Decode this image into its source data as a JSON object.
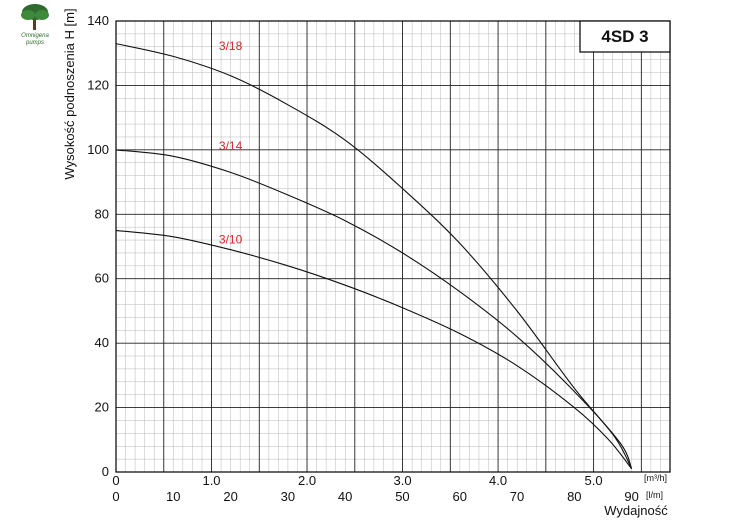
{
  "chart_data": {
    "type": "line",
    "title": "4SD 3",
    "ylabel": "Wysokość podnoszenia H [m]",
    "xlabel": "Wydajność",
    "x_unit_top": "[m³/h]",
    "x_unit_bottom": "[l/m]",
    "x_top_ticks": [
      "0",
      "1.0",
      "2.0",
      "3.0",
      "4.0",
      "5.0"
    ],
    "x_bottom_ticks": [
      "0",
      "10",
      "20",
      "30",
      "40",
      "50",
      "60",
      "70",
      "80",
      "90"
    ],
    "y_ticks": [
      "0",
      "20",
      "40",
      "60",
      "80",
      "100",
      "120",
      "140"
    ],
    "xlim": [
      0,
      96.7
    ],
    "ylim": [
      0,
      140
    ],
    "grid": true,
    "series": [
      {
        "name": "3/18",
        "label_at": [
          20,
          131
        ],
        "x": [
          0,
          10,
          20,
          30,
          40,
          50,
          60,
          70,
          80,
          87,
          90
        ],
        "y": [
          133,
          129,
          123,
          114,
          103,
          88,
          71,
          50,
          26,
          11,
          1
        ]
      },
      {
        "name": "3/14",
        "label_at": [
          20,
          100
        ],
        "x": [
          0,
          10,
          20,
          30,
          40,
          50,
          60,
          70,
          80,
          88,
          90
        ],
        "y": [
          100,
          98,
          93,
          86,
          78,
          68,
          56,
          42,
          25,
          9,
          1
        ]
      },
      {
        "name": "3/10",
        "label_at": [
          20,
          71
        ],
        "x": [
          0,
          10,
          20,
          30,
          40,
          50,
          60,
          70,
          80,
          86,
          90
        ],
        "y": [
          75,
          73,
          69,
          64,
          58,
          51,
          43,
          33,
          20,
          10,
          1
        ]
      }
    ]
  },
  "logo": {
    "name": "Omnigena",
    "sub": "pumps"
  }
}
